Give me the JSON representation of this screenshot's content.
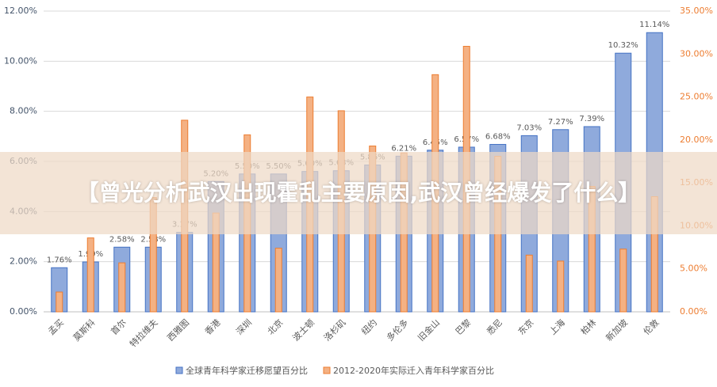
{
  "banner": "【曾光分析武汉出现霍乱主要原因,武汉曾经爆发了什么】",
  "chart_data": {
    "type": "bar",
    "categories": [
      "孟买",
      "莫斯科",
      "首尔",
      "特拉维夫",
      "西雅图",
      "香港",
      "深圳",
      "北京",
      "波士顿",
      "洛杉矶",
      "纽约",
      "多伦多",
      "旧金山",
      "巴黎",
      "悉尼",
      "东京",
      "上海",
      "柏林",
      "新加坡",
      "伦敦"
    ],
    "series": [
      {
        "name": "全球青年科学家迁移愿望百分比",
        "color": "#8faadc",
        "edge": "#4472c4",
        "values": [
          1.76,
          1.99,
          2.58,
          2.58,
          3.17,
          5.2,
          5.5,
          5.5,
          5.6,
          5.63,
          5.86,
          6.21,
          6.45,
          6.57,
          6.68,
          7.03,
          7.27,
          7.39,
          10.32,
          11.14
        ],
        "value_labels": [
          "1.76%",
          "1.99%",
          "2.58%",
          "2.58%",
          "3.17%",
          "5.20%",
          "5.50%",
          "5.50%",
          "5.60%",
          "5.63%",
          "5.86%",
          "6.21%",
          "6.45%",
          "6.57%",
          "6.68%",
          "7.03%",
          "7.27%",
          "7.39%",
          "10.32%",
          "11.14%"
        ]
      },
      {
        "name": "2012-2020年实际迁入青年科学家百分比",
        "color": "#f4b183",
        "edge": "#ed7d31",
        "axis": "y2",
        "values": [
          2.3,
          8.6,
          5.7,
          13.3,
          22.3,
          11.5,
          20.6,
          7.4,
          25.0,
          23.4,
          19.3,
          18.5,
          27.6,
          30.9,
          18.1,
          6.6,
          5.9,
          14.6,
          7.3,
          13.4
        ]
      }
    ],
    "ylim": [
      0,
      12
    ],
    "yticks": [
      {
        "value": 0,
        "label": "0.00%"
      },
      {
        "value": 2,
        "label": "2.00%"
      },
      {
        "value": 4,
        "label": "4.00%"
      },
      {
        "value": 6,
        "label": "6.00%"
      },
      {
        "value": 8,
        "label": "8.00%"
      },
      {
        "value": 10,
        "label": "10.00%"
      },
      {
        "value": 12,
        "label": "12.00%"
      }
    ],
    "y2lim": [
      0,
      35
    ],
    "y2ticks": [
      {
        "value": 0,
        "label": "0.00%"
      },
      {
        "value": 5,
        "label": "5.00%"
      },
      {
        "value": 10,
        "label": "10.00%"
      },
      {
        "value": 15,
        "label": "15.00%"
      },
      {
        "value": 20,
        "label": "20.00%"
      },
      {
        "value": 25,
        "label": "25.00%"
      },
      {
        "value": 30,
        "label": "30.00%"
      },
      {
        "value": 35,
        "label": "35.00%"
      }
    ],
    "grid": true,
    "legend": "bottom"
  }
}
